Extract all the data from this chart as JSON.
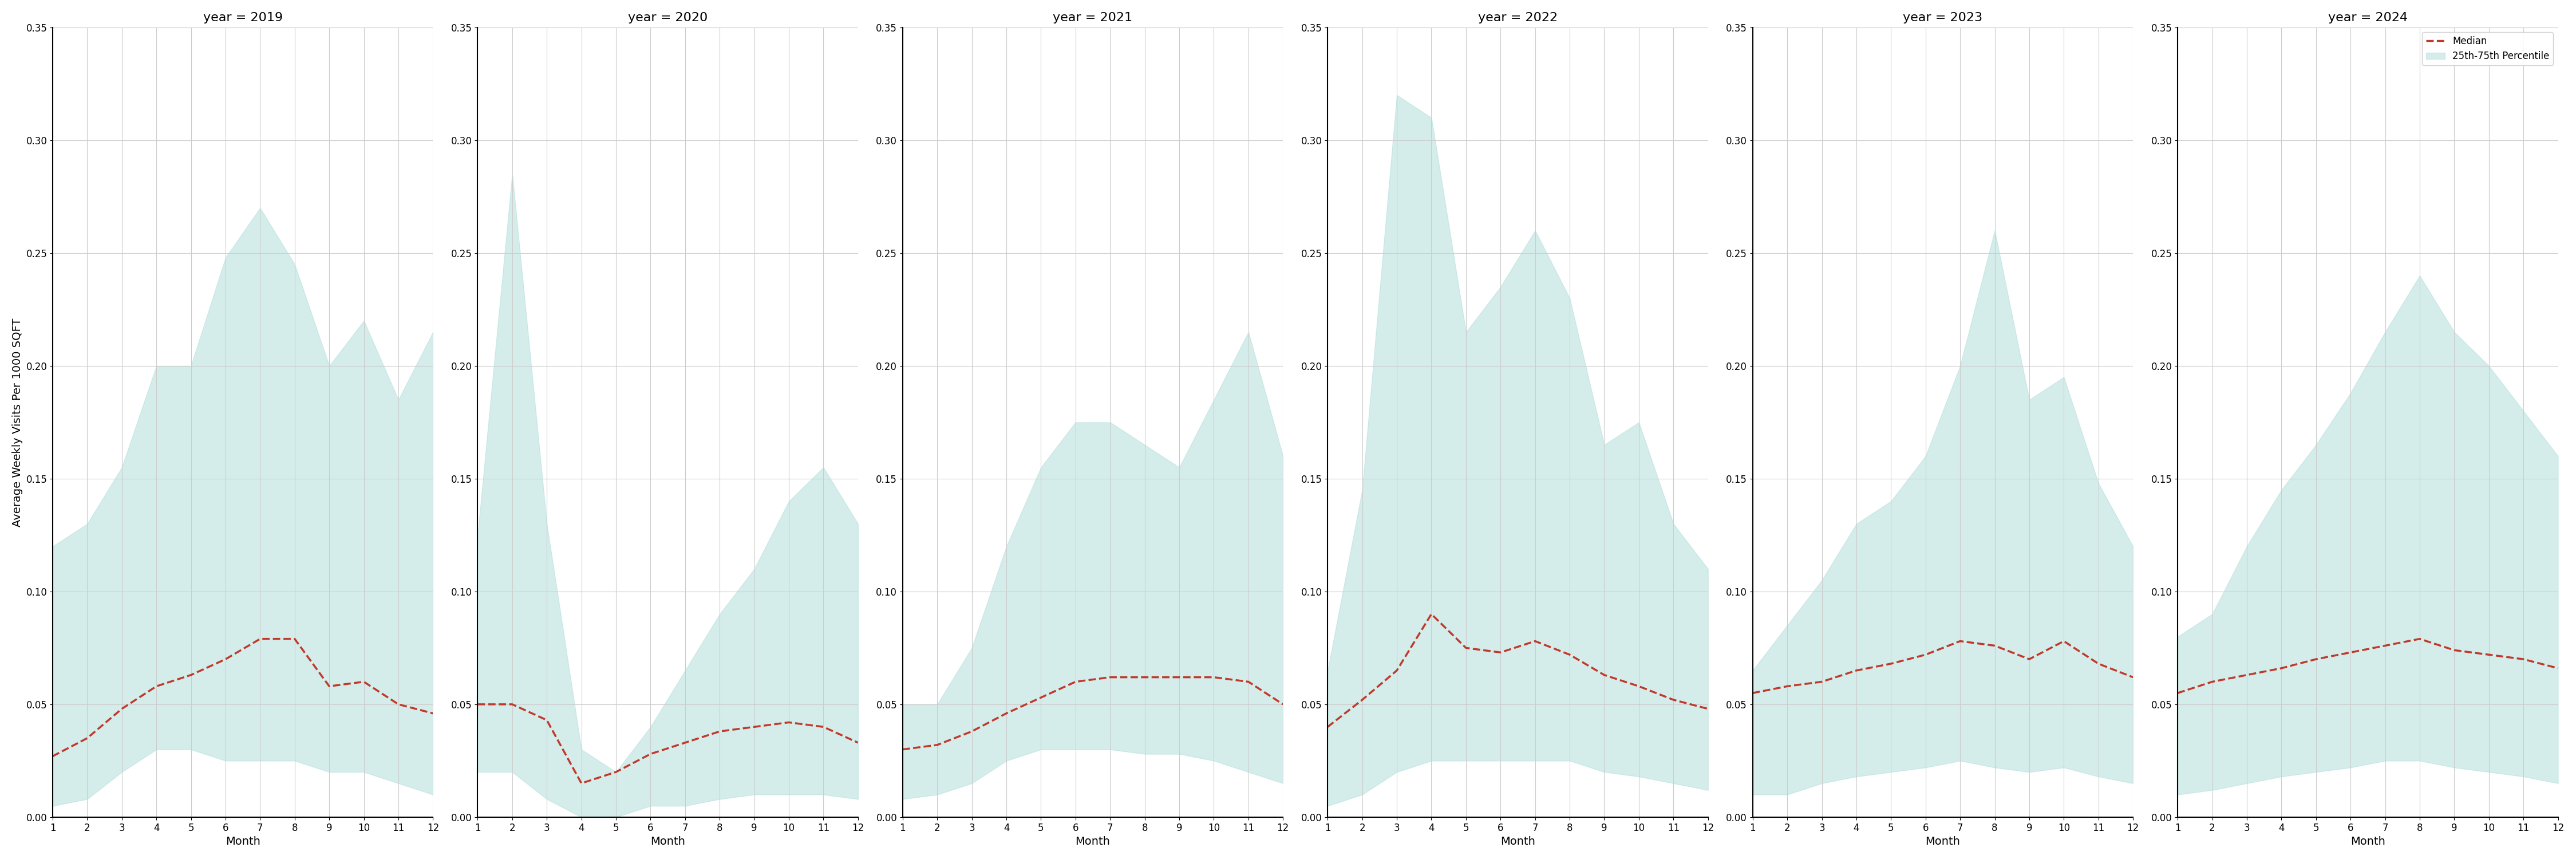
{
  "years": [
    2019,
    2020,
    2021,
    2022,
    2023,
    2024
  ],
  "months": [
    1,
    2,
    3,
    4,
    5,
    6,
    7,
    8,
    9,
    10,
    11,
    12
  ],
  "median": {
    "2019": [
      0.027,
      0.035,
      0.048,
      0.058,
      0.063,
      0.07,
      0.079,
      0.079,
      0.058,
      0.06,
      0.05,
      0.046
    ],
    "2020": [
      0.05,
      0.05,
      0.043,
      0.015,
      0.02,
      0.028,
      0.033,
      0.038,
      0.04,
      0.042,
      0.04,
      0.033
    ],
    "2021": [
      0.03,
      0.032,
      0.038,
      0.046,
      0.053,
      0.06,
      0.062,
      0.062,
      0.062,
      0.062,
      0.06,
      0.05
    ],
    "2022": [
      0.04,
      0.052,
      0.065,
      0.09,
      0.075,
      0.073,
      0.078,
      0.072,
      0.063,
      0.058,
      0.052,
      0.048
    ],
    "2023": [
      0.055,
      0.058,
      0.06,
      0.065,
      0.068,
      0.072,
      0.078,
      0.076,
      0.07,
      0.078,
      0.068,
      0.062
    ],
    "2024": [
      0.055,
      0.06,
      0.063,
      0.066,
      0.07,
      0.073,
      0.076,
      0.079,
      0.074,
      0.072,
      0.07,
      0.066
    ]
  },
  "p25": {
    "2019": [
      0.005,
      0.008,
      0.02,
      0.03,
      0.03,
      0.025,
      0.025,
      0.025,
      0.02,
      0.02,
      0.015,
      0.01
    ],
    "2020": [
      0.02,
      0.02,
      0.008,
      0.0,
      0.0,
      0.005,
      0.005,
      0.008,
      0.01,
      0.01,
      0.01,
      0.008
    ],
    "2021": [
      0.008,
      0.01,
      0.015,
      0.025,
      0.03,
      0.03,
      0.03,
      0.028,
      0.028,
      0.025,
      0.02,
      0.015
    ],
    "2022": [
      0.005,
      0.01,
      0.02,
      0.025,
      0.025,
      0.025,
      0.025,
      0.025,
      0.02,
      0.018,
      0.015,
      0.012
    ],
    "2023": [
      0.01,
      0.01,
      0.015,
      0.018,
      0.02,
      0.022,
      0.025,
      0.022,
      0.02,
      0.022,
      0.018,
      0.015
    ],
    "2024": [
      0.01,
      0.012,
      0.015,
      0.018,
      0.02,
      0.022,
      0.025,
      0.025,
      0.022,
      0.02,
      0.018,
      0.015
    ]
  },
  "p75": {
    "2019": [
      0.12,
      0.13,
      0.155,
      0.2,
      0.2,
      0.248,
      0.27,
      0.245,
      0.2,
      0.22,
      0.185,
      0.215
    ],
    "2020": [
      0.125,
      0.285,
      0.13,
      0.03,
      0.02,
      0.04,
      0.065,
      0.09,
      0.11,
      0.14,
      0.155,
      0.13
    ],
    "2021": [
      0.05,
      0.05,
      0.075,
      0.12,
      0.155,
      0.175,
      0.175,
      0.165,
      0.155,
      0.185,
      0.215,
      0.16
    ],
    "2022": [
      0.065,
      0.145,
      0.32,
      0.31,
      0.215,
      0.235,
      0.26,
      0.23,
      0.165,
      0.175,
      0.13,
      0.11
    ],
    "2023": [
      0.065,
      0.085,
      0.105,
      0.13,
      0.14,
      0.16,
      0.2,
      0.26,
      0.185,
      0.195,
      0.148,
      0.12
    ],
    "2024": [
      0.08,
      0.09,
      0.12,
      0.145,
      0.165,
      0.188,
      0.215,
      0.24,
      0.215,
      0.2,
      0.18,
      0.16
    ]
  },
  "ylim": [
    0.0,
    0.35
  ],
  "yticks": [
    0.0,
    0.05,
    0.1,
    0.15,
    0.2,
    0.25,
    0.3,
    0.35
  ],
  "ylabel": "Average Weekly Visits Per 1000 SQFT",
  "xlabel": "Month",
  "fill_color": "#b2dfdb",
  "fill_alpha": 0.55,
  "line_color": "#c0392b",
  "line_style": "--",
  "line_width": 2.5,
  "legend_median_label": "Median",
  "legend_fill_label": "25th-75th Percentile",
  "title_fontsize": 16,
  "axis_label_fontsize": 14,
  "tick_fontsize": 12,
  "fig_facecolor": "#ffffff",
  "grid_color": "#cccccc",
  "grid_linewidth": 0.8
}
